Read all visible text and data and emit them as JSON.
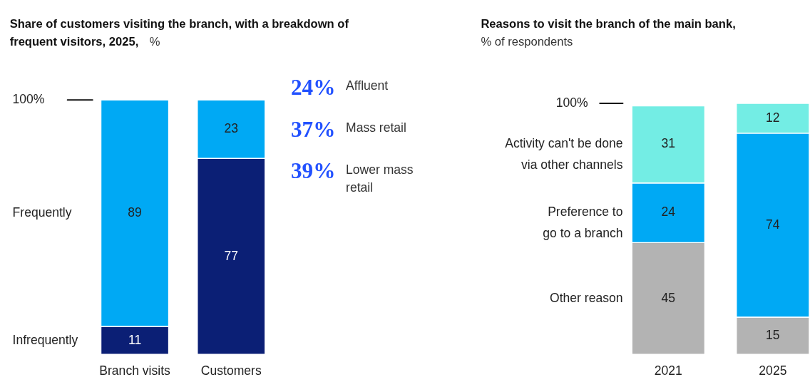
{
  "chart_data": [
    {
      "type": "bar",
      "title": "Share of customers visiting the branch, with a breakdown of frequent visitors, 2025,",
      "subtitle": "%",
      "categories": [
        "Branch visits",
        "Customers"
      ],
      "stacked": true,
      "data_labels": true,
      "series": [
        {
          "name": "Infrequently",
          "color": "#0b1f75",
          "values": [
            11,
            null
          ]
        },
        {
          "name": "Frequently",
          "color": "#00a9f4",
          "values": [
            89,
            null
          ]
        },
        {
          "color": "#0b1f75",
          "values": [
            null,
            77
          ]
        },
        {
          "color": "#00a9f4",
          "values": [
            null,
            23
          ]
        }
      ],
      "annotations": [
        "100%",
        "24% Affluent",
        "37% Mass retail",
        "39% Lower mass retail"
      ]
    },
    {
      "type": "bar",
      "title": "Reasons to visit the branch of the main bank,",
      "subtitle": "% of respondents",
      "categories": [
        "2021",
        "2025"
      ],
      "stacked": true,
      "data_labels": true,
      "series": [
        {
          "name": "Other reason",
          "color": "#b3b3b3",
          "values": [
            45,
            15
          ]
        },
        {
          "name": "Preference to go to a branch",
          "color": "#00a9f4",
          "values": [
            24,
            74
          ]
        },
        {
          "name": "Activity can't be done via other channels",
          "color": "#73ede4",
          "values": [
            31,
            12
          ]
        }
      ],
      "annotations": [
        "100%"
      ]
    }
  ]
}
